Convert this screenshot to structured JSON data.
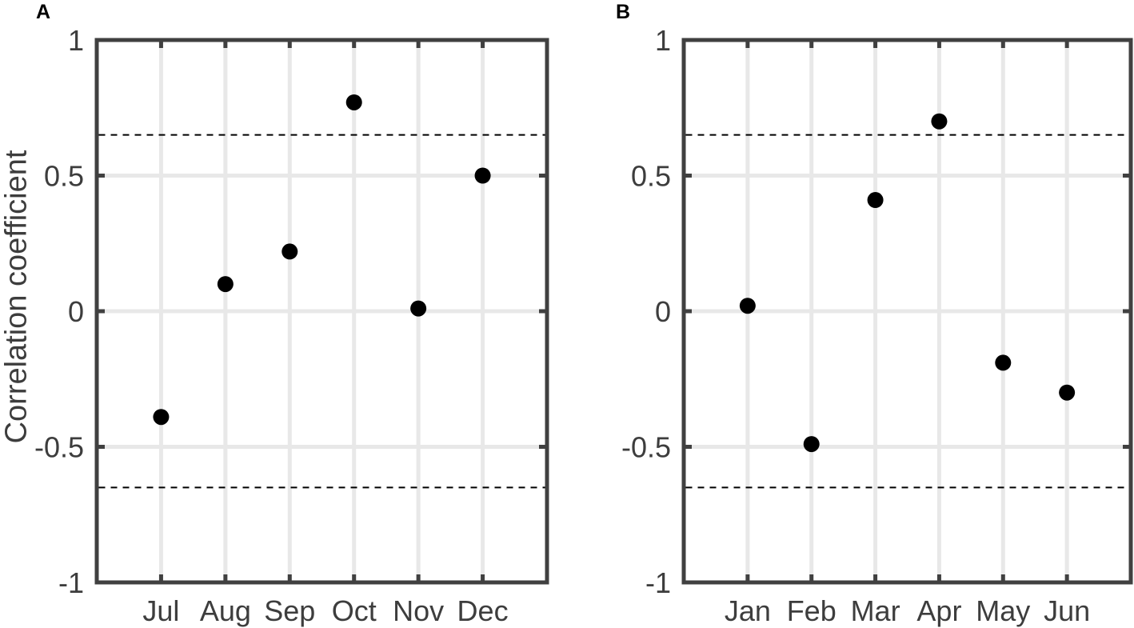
{
  "figure": {
    "background": "#ffffff",
    "axis_color": "#404040",
    "grid_color": "#e8e8e8",
    "tick_label_color": "#3d3d3d",
    "marker_color": "#000000",
    "threshold_line_color": "#000000"
  },
  "chart_data": [
    {
      "type": "scatter",
      "panel_label": "A",
      "categories": [
        "Jul",
        "Aug",
        "Sep",
        "Oct",
        "Nov",
        "Dec"
      ],
      "values": [
        -0.39,
        0.1,
        0.22,
        0.77,
        0.01,
        0.5
      ],
      "title": "",
      "xlabel": "",
      "ylabel": "Correlation coefficient",
      "ylim": [
        -1,
        1
      ],
      "yticks": [
        -1,
        -0.5,
        0,
        0.5,
        1
      ],
      "ytick_labels": [
        "-1",
        "-0.5",
        "0",
        "0.5",
        "1"
      ],
      "threshold_lines": [
        0.65,
        -0.65
      ],
      "grid": "on",
      "legend": "none",
      "marker": "filled-black-circle"
    },
    {
      "type": "scatter",
      "panel_label": "B",
      "categories": [
        "Jan",
        "Feb",
        "Mar",
        "Apr",
        "May",
        "Jun"
      ],
      "values": [
        0.02,
        -0.49,
        0.41,
        0.7,
        -0.19,
        -0.3
      ],
      "title": "",
      "xlabel": "",
      "ylabel": "",
      "ylim": [
        -1,
        1
      ],
      "yticks": [
        -1,
        -0.5,
        0,
        0.5,
        1
      ],
      "ytick_labels": [
        "-1",
        "-0.5",
        "0",
        "0.5",
        "1"
      ],
      "threshold_lines": [
        0.65,
        -0.65
      ],
      "grid": "on",
      "legend": "none",
      "marker": "filled-black-circle"
    }
  ]
}
